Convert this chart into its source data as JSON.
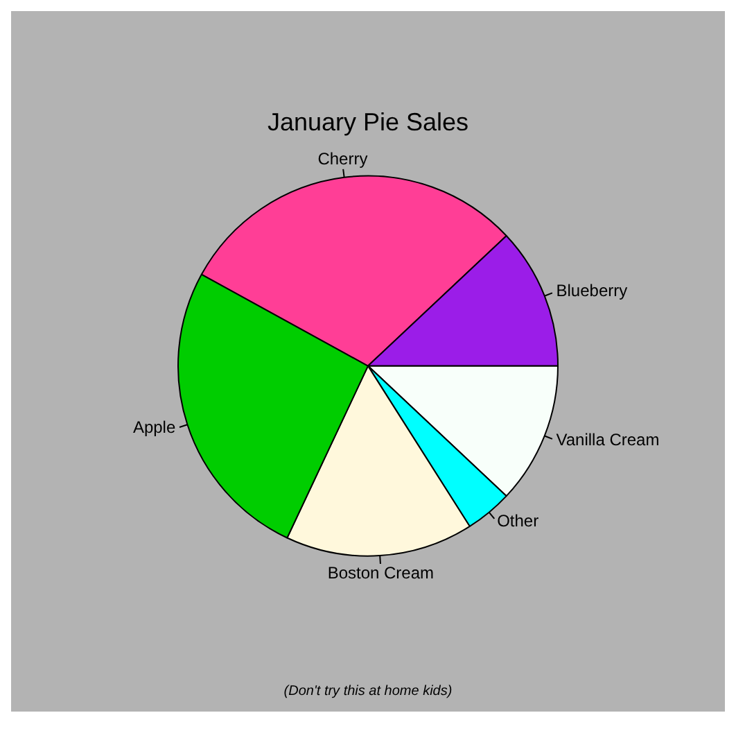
{
  "chart_data": {
    "type": "pie",
    "title": "January Pie Sales",
    "categories": [
      "Blueberry",
      "Cherry",
      "Apple",
      "Boston Cream",
      "Other",
      "Vanilla Cream"
    ],
    "values": [
      12,
      30,
      26,
      16,
      4,
      12
    ],
    "colors": [
      "#9b1de8",
      "#ff3e96",
      "#00cd00",
      "#fff8dc",
      "#00ffff",
      "#f8fffa"
    ],
    "annotations": [
      "(Don't try this at home kids)"
    ],
    "legend": false
  }
}
